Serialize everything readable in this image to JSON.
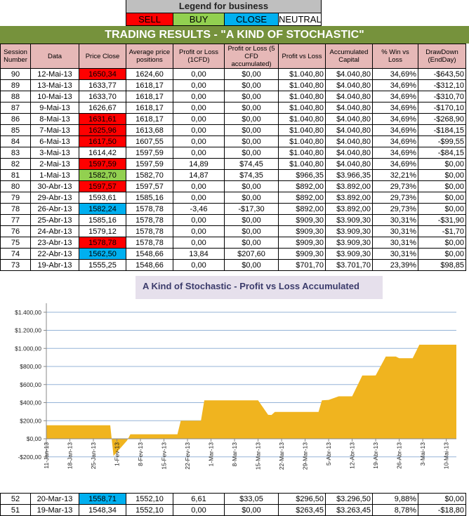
{
  "legend": {
    "title": "Legend for business",
    "items": [
      {
        "label": "SELL",
        "color": "#ff0000"
      },
      {
        "label": "BUY",
        "color": "#92d050"
      },
      {
        "label": "CLOSE",
        "color": "#00b0f0"
      },
      {
        "label": "NEUTRAL",
        "color": "#ffffff"
      }
    ]
  },
  "title": "TRADING RESULTS - \"A KIND OF STOCHASTIC\"",
  "columns": [
    "Session Number",
    "Data",
    "Price Close",
    "Average price positions",
    "Profit or Loss (1CFD)",
    "Profit or Loss (5 CFD accumulated)",
    "Profit vs Loss",
    "Accumulated Capital",
    "% Win vs Loss",
    "DrawDown (EndDay)"
  ],
  "rows": [
    {
      "cells": [
        "90",
        "12-Mai-13",
        "1650,34",
        "1624,60",
        "0,00",
        "$0,00",
        "$1.040,80",
        "$4.040,80",
        "34,69%",
        "-$643,50"
      ],
      "signal": "SELL"
    },
    {
      "cells": [
        "89",
        "13-Mai-13",
        "1633,77",
        "1618,17",
        "0,00",
        "$0,00",
        "$1.040,80",
        "$4.040,80",
        "34,69%",
        "-$312,10"
      ],
      "signal": "NEUTRAL"
    },
    {
      "cells": [
        "88",
        "10-Mai-13",
        "1633,70",
        "1618,17",
        "0,00",
        "$0,00",
        "$1.040,80",
        "$4.040,80",
        "34,69%",
        "-$310,70"
      ],
      "signal": "NEUTRAL"
    },
    {
      "cells": [
        "87",
        "9-Mai-13",
        "1626,67",
        "1618,17",
        "0,00",
        "$0,00",
        "$1.040,80",
        "$4.040,80",
        "34,69%",
        "-$170,10"
      ],
      "signal": "NEUTRAL"
    },
    {
      "cells": [
        "86",
        "8-Mai-13",
        "1631,61",
        "1618,17",
        "0,00",
        "$0,00",
        "$1.040,80",
        "$4.040,80",
        "34,69%",
        "-$268,90"
      ],
      "signal": "SELL"
    },
    {
      "cells": [
        "85",
        "7-Mai-13",
        "1625,96",
        "1613,68",
        "0,00",
        "$0,00",
        "$1.040,80",
        "$4.040,80",
        "34,69%",
        "-$184,15"
      ],
      "signal": "SELL"
    },
    {
      "cells": [
        "84",
        "6-Mai-13",
        "1617,50",
        "1607,55",
        "0,00",
        "$0,00",
        "$1.040,80",
        "$4.040,80",
        "34,69%",
        "-$99,55"
      ],
      "signal": "SELL"
    },
    {
      "cells": [
        "83",
        "3-Mai-13",
        "1614,42",
        "1597,59",
        "0,00",
        "$0,00",
        "$1.040,80",
        "$4.040,80",
        "34,69%",
        "-$84,15"
      ],
      "signal": "NEUTRAL"
    },
    {
      "cells": [
        "82",
        "2-Mai-13",
        "1597,59",
        "1597,59",
        "14,89",
        "$74,45",
        "$1.040,80",
        "$4.040,80",
        "34,69%",
        "$0,00"
      ],
      "signal": "SELL"
    },
    {
      "cells": [
        "81",
        "1-Mai-13",
        "1582,70",
        "1582,70",
        "14,87",
        "$74,35",
        "$966,35",
        "$3.966,35",
        "32,21%",
        "$0,00"
      ],
      "signal": "BUY"
    },
    {
      "cells": [
        "80",
        "30-Abr-13",
        "1597,57",
        "1597,57",
        "0,00",
        "$0,00",
        "$892,00",
        "$3.892,00",
        "29,73%",
        "$0,00"
      ],
      "signal": "SELL"
    },
    {
      "cells": [
        "79",
        "29-Abr-13",
        "1593,61",
        "1585,16",
        "0,00",
        "$0,00",
        "$892,00",
        "$3.892,00",
        "29,73%",
        "$0,00"
      ],
      "signal": "NEUTRAL"
    },
    {
      "cells": [
        "78",
        "26-Abr-13",
        "1582,24",
        "1578,78",
        "-3,46",
        "-$17,30",
        "$892,00",
        "$3.892,00",
        "29,73%",
        "$0,00"
      ],
      "signal": "CLOSE"
    },
    {
      "cells": [
        "77",
        "25-Abr-13",
        "1585,16",
        "1578,78",
        "0,00",
        "$0,00",
        "$909,30",
        "$3.909,30",
        "30,31%",
        "-$31,90"
      ],
      "signal": "NEUTRAL"
    },
    {
      "cells": [
        "76",
        "24-Abr-13",
        "1579,12",
        "1578,78",
        "0,00",
        "$0,00",
        "$909,30",
        "$3.909,30",
        "30,31%",
        "-$1,70"
      ],
      "signal": "NEUTRAL"
    },
    {
      "cells": [
        "75",
        "23-Abr-13",
        "1578,78",
        "1578,78",
        "0,00",
        "$0,00",
        "$909,30",
        "$3.909,30",
        "30,31%",
        "$0,00"
      ],
      "signal": "SELL"
    },
    {
      "cells": [
        "74",
        "22-Abr-13",
        "1562,50",
        "1548,66",
        "13,84",
        "$207,60",
        "$909,30",
        "$3.909,30",
        "30,31%",
        "$0,00"
      ],
      "signal": "CLOSE"
    },
    {
      "cells": [
        "73",
        "19-Abr-13",
        "1555,25",
        "1548,66",
        "0,00",
        "$0,00",
        "$701,70",
        "$3.701,70",
        "23,39%",
        "$98,85"
      ],
      "signal": "NEUTRAL"
    }
  ],
  "bottom_rows": [
    {
      "cells": [
        "52",
        "20-Mar-13",
        "1558,71",
        "1552,10",
        "6,61",
        "$33,05",
        "$296,50",
        "$3.296,50",
        "9,88%",
        "$0,00"
      ],
      "signal": "CLOSE"
    },
    {
      "cells": [
        "51",
        "19-Mar-13",
        "1548,34",
        "1552,10",
        "0,00",
        "$0,00",
        "$263,45",
        "$3.263,45",
        "8,78%",
        "-$18,80"
      ],
      "signal": "NEUTRAL"
    }
  ],
  "chart_data": {
    "type": "area",
    "title": "A Kind of Stochastic - Profit vs Loss Accumulated",
    "ylim": [
      -200,
      1400
    ],
    "y_ticks": [
      "-$200,00",
      "$0,00",
      "$200,00",
      "$400,00",
      "$600,00",
      "$800,00",
      "$1.000,00",
      "$1.200,00",
      "$1.400,00"
    ],
    "y_tick_values": [
      -200,
      0,
      200,
      400,
      600,
      800,
      1000,
      1200,
      1400
    ],
    "x_ticks": [
      "11-Jan-13",
      "18-Jan-13",
      "25-Jan-13",
      "1-Fev-13",
      "8-Fev-13",
      "15-Fev-13",
      "22-Fev-13",
      "1-Mar-13",
      "8-Mar-13",
      "15-Mar-13",
      "22-Mar-13",
      "29-Mar-13",
      "5-Abr-13",
      "12-Abr-13",
      "19-Abr-13",
      "26-Abr-13",
      "3-Mai-13",
      "10-Mai-13"
    ],
    "xlim": [
      "2013-01-11",
      "2013-05-13"
    ],
    "grid": true,
    "color": "#f0b41f",
    "x": [
      "2013-01-11",
      "2013-01-30",
      "2013-01-31",
      "2013-02-04",
      "2013-02-05",
      "2013-02-19",
      "2013-02-20",
      "2013-02-26",
      "2013-02-27",
      "2013-03-15",
      "2013-03-18",
      "2013-03-19",
      "2013-03-20",
      "2013-04-02",
      "2013-04-03",
      "2013-04-05",
      "2013-04-08",
      "2013-04-12",
      "2013-04-15",
      "2013-04-18",
      "2013-04-19",
      "2013-04-22",
      "2013-04-25",
      "2013-04-26",
      "2013-04-30",
      "2013-05-01",
      "2013-05-02",
      "2013-05-13"
    ],
    "values": [
      150,
      150,
      -190,
      -20,
      50,
      50,
      200,
      200,
      425,
      425,
      265,
      263.45,
      296.5,
      296.5,
      425,
      430,
      470,
      470,
      700,
      700,
      701.7,
      909.3,
      909.3,
      892,
      892,
      966.35,
      1040.8,
      1040.8
    ]
  }
}
